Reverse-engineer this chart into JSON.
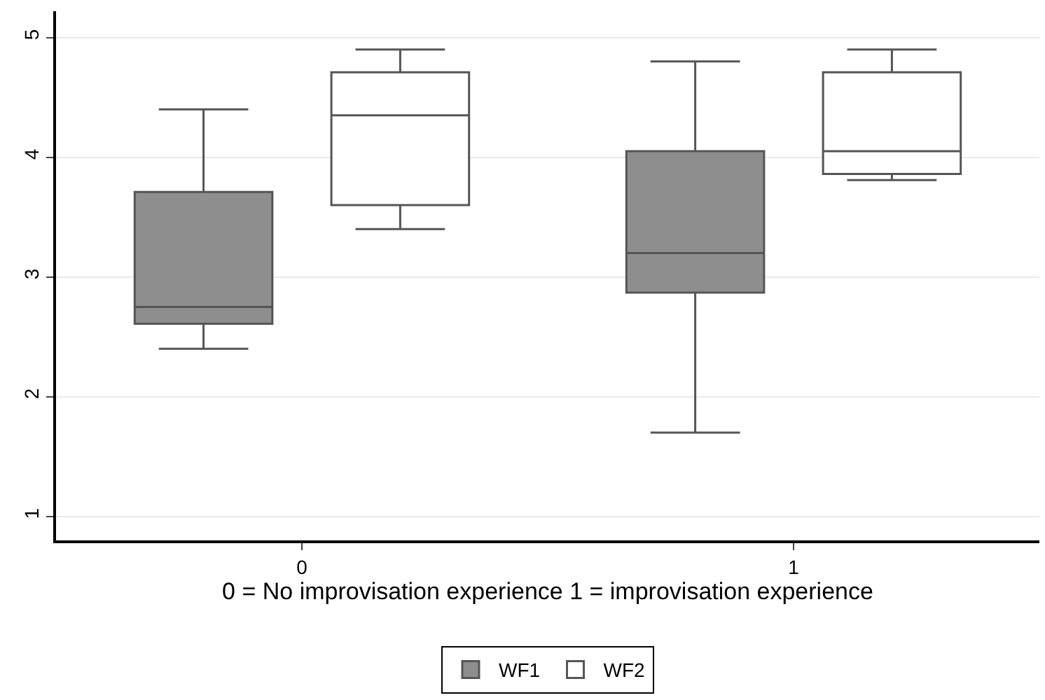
{
  "chart_data": {
    "type": "box",
    "xlabel": "0 = No improvisation experience 1 = improvisation experience",
    "categories": [
      "0",
      "1"
    ],
    "series": [
      {
        "name": "WF1",
        "color": "#8e8e8e",
        "boxes": [
          {
            "low": 2.4,
            "q1": 2.61,
            "median": 2.75,
            "q3": 3.71,
            "high": 4.4
          },
          {
            "low": 1.7,
            "q1": 2.87,
            "median": 3.2,
            "q3": 4.05,
            "high": 4.8
          }
        ]
      },
      {
        "name": "WF2",
        "color": "#ffffff",
        "boxes": [
          {
            "low": 3.4,
            "q1": 3.6,
            "median": 4.35,
            "q3": 4.71,
            "high": 4.9
          },
          {
            "low": 3.81,
            "q1": 3.86,
            "median": 4.05,
            "q3": 4.71,
            "high": 4.9
          }
        ]
      }
    ],
    "ylim": [
      0.8,
      5.22
    ],
    "yticks": [
      1,
      2,
      3,
      4,
      5
    ],
    "grid": "y",
    "legend": "bottom"
  }
}
